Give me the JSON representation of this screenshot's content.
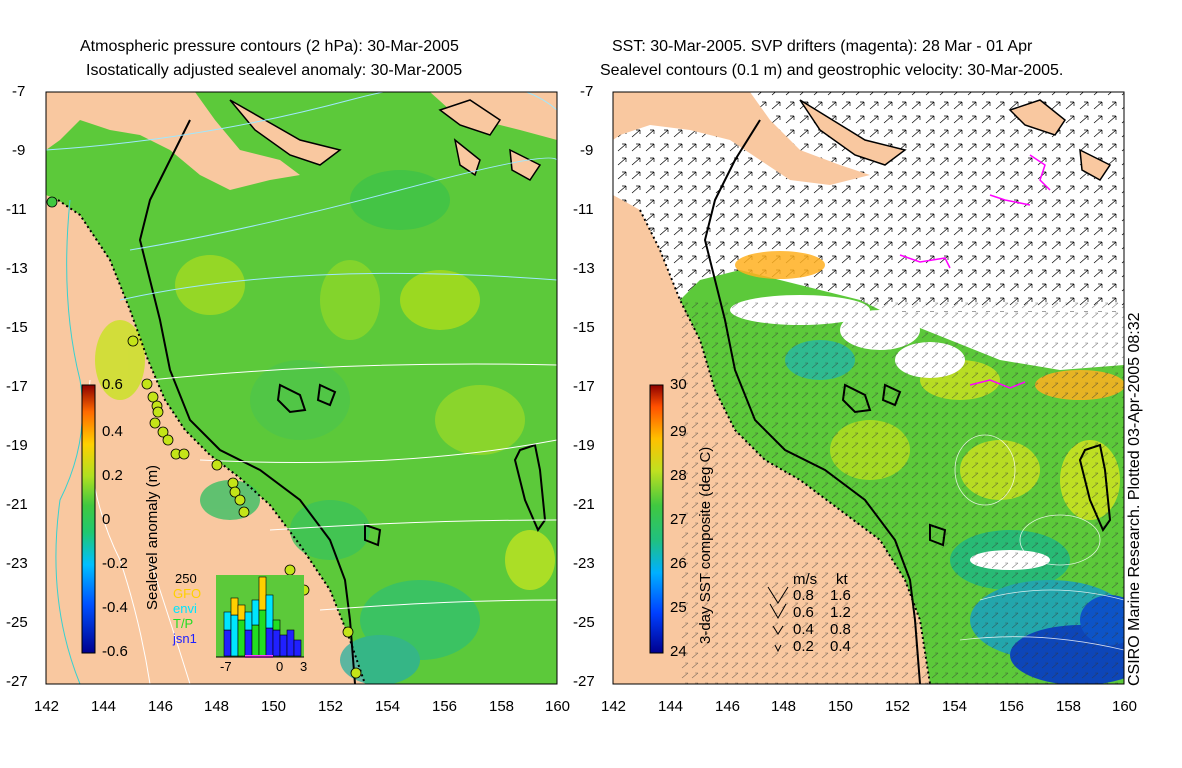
{
  "left_panel": {
    "title_line1": "Atmospheric pressure contours (2 hPa): 30-Mar-2005",
    "title_line2": "Isostatically adjusted sealevel anomaly: 30-Mar-2005",
    "colorbar_label": "Sealevel anomaly (m)",
    "colorbar_ticks": [
      "0.6",
      "0.4",
      "0.2",
      "0",
      "-0.2",
      "-0.4",
      "-0.6"
    ],
    "inset": {
      "count_label": "250",
      "legend": [
        {
          "label": "GFO",
          "color": "#ffd000"
        },
        {
          "label": "envi",
          "color": "#00e5ff"
        },
        {
          "label": "T/P",
          "color": "#22dd22"
        },
        {
          "label": "jsn1",
          "color": "#2020ff"
        }
      ],
      "x_ticks": [
        "-7",
        "0",
        "3"
      ]
    }
  },
  "right_panel": {
    "title_line1": "SST: 30-Mar-2005. SVP drifters (magenta): 28 Mar - 01 Apr",
    "title_line2": "Sealevel contours (0.1 m) and geostrophic velocity: 30-Mar-2005.",
    "colorbar_label": "3-day SST composite (deg C)",
    "colorbar_ticks": [
      "30",
      "29",
      "28",
      "27",
      "26",
      "25",
      "24"
    ],
    "velocity_legend": {
      "header_ms": "m/s",
      "header_kt": "kt",
      "rows": [
        [
          "0.8",
          "1.6"
        ],
        [
          "0.6",
          "1.2"
        ],
        [
          "0.4",
          "0.8"
        ],
        [
          "0.2",
          "0.4"
        ]
      ]
    },
    "credit": "CSIRO Marine Research. Plotted 03-Apr-2005 08:32"
  },
  "axes": {
    "lat_ticks": [
      "-7",
      "-9",
      "-11",
      "-13",
      "-15",
      "-17",
      "-19",
      "-21",
      "-23",
      "-25",
      "-27"
    ],
    "lon_ticks": [
      "142",
      "144",
      "146",
      "148",
      "150",
      "152",
      "154",
      "156",
      "158",
      "160"
    ]
  },
  "colors": {
    "land": "#f9c8a0",
    "ocean_green": "#5cc93a",
    "coast": "#000000"
  }
}
